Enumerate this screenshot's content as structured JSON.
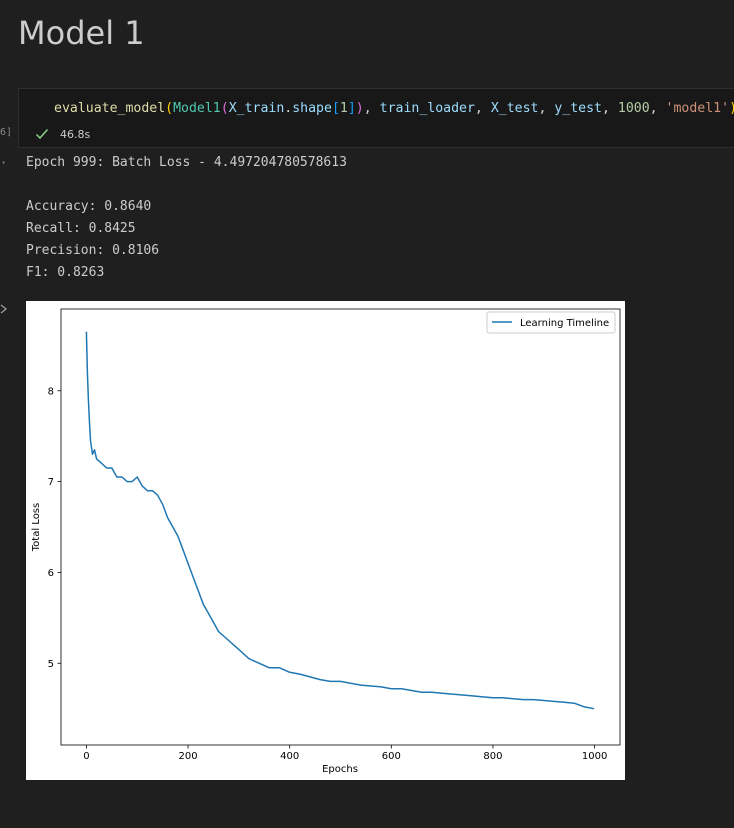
{
  "notebook": {
    "markdown_title": "Model 1",
    "cell": {
      "execution_count": "6]",
      "code_tokens": [
        {
          "t": "evaluate_model",
          "c": "t-fn"
        },
        {
          "t": "(",
          "c": "t-p1"
        },
        {
          "t": "Model1",
          "c": "t-class"
        },
        {
          "t": "(",
          "c": "t-p2"
        },
        {
          "t": "X_train",
          "c": "t-var"
        },
        {
          "t": ".",
          "c": "t-punc"
        },
        {
          "t": "shape",
          "c": "t-var"
        },
        {
          "t": "[",
          "c": "t-p3"
        },
        {
          "t": "1",
          "c": "t-num"
        },
        {
          "t": "]",
          "c": "t-p3"
        },
        {
          "t": ")",
          "c": "t-p2"
        },
        {
          "t": ", ",
          "c": "t-punc"
        },
        {
          "t": "train_loader",
          "c": "t-var"
        },
        {
          "t": ", ",
          "c": "t-punc"
        },
        {
          "t": "X_test",
          "c": "t-var"
        },
        {
          "t": ", ",
          "c": "t-punc"
        },
        {
          "t": "y_test",
          "c": "t-var"
        },
        {
          "t": ", ",
          "c": "t-punc"
        },
        {
          "t": "1000",
          "c": "t-num"
        },
        {
          "t": ", ",
          "c": "t-punc"
        },
        {
          "t": "'model1'",
          "c": "t-str"
        },
        {
          "t": ")",
          "c": "t-p1"
        }
      ],
      "status_icon": "check-icon",
      "duration": "46.8s",
      "status_color": "#89d185"
    },
    "output": {
      "indicator": "·",
      "epoch_line": "Epoch 999: Batch Loss - 4.497204780578613",
      "accuracy": "Accuracy: 0.8640",
      "recall": "Recall: 0.8425",
      "precision": "Precision: 0.8106",
      "f1": "F1: 0.8263"
    }
  },
  "chart_data": {
    "type": "line",
    "title": "",
    "xlabel": "Epochs",
    "ylabel": "Total Loss",
    "xlim": [
      -50,
      1050
    ],
    "ylim": [
      4.1,
      8.9
    ],
    "xticks": [
      0,
      200,
      400,
      600,
      800,
      1000
    ],
    "yticks": [
      5,
      6,
      7,
      8
    ],
    "legend": "upper right",
    "grid": false,
    "color": "#1f77b4",
    "series": [
      {
        "name": "Learning Timeline",
        "x": [
          0,
          2,
          4,
          6,
          8,
          12,
          16,
          20,
          30,
          40,
          50,
          60,
          70,
          80,
          90,
          100,
          110,
          120,
          130,
          140,
          150,
          160,
          170,
          180,
          190,
          200,
          210,
          220,
          230,
          240,
          250,
          260,
          270,
          280,
          290,
          300,
          320,
          340,
          360,
          380,
          400,
          420,
          440,
          460,
          480,
          500,
          520,
          540,
          560,
          580,
          600,
          620,
          640,
          660,
          680,
          700,
          720,
          740,
          760,
          780,
          800,
          820,
          840,
          860,
          880,
          900,
          920,
          940,
          960,
          980,
          999
        ],
        "y": [
          8.65,
          8.2,
          7.9,
          7.65,
          7.45,
          7.3,
          7.35,
          7.25,
          7.2,
          7.15,
          7.15,
          7.05,
          7.05,
          7.0,
          7.0,
          7.05,
          6.95,
          6.9,
          6.9,
          6.85,
          6.75,
          6.6,
          6.5,
          6.4,
          6.25,
          6.1,
          5.95,
          5.8,
          5.65,
          5.55,
          5.45,
          5.35,
          5.3,
          5.25,
          5.2,
          5.15,
          5.05,
          5.0,
          4.95,
          4.95,
          4.9,
          4.88,
          4.85,
          4.82,
          4.8,
          4.8,
          4.78,
          4.76,
          4.75,
          4.74,
          4.72,
          4.72,
          4.7,
          4.68,
          4.68,
          4.67,
          4.66,
          4.65,
          4.64,
          4.63,
          4.62,
          4.62,
          4.61,
          4.6,
          4.6,
          4.59,
          4.58,
          4.57,
          4.56,
          4.52,
          4.5
        ]
      }
    ]
  }
}
